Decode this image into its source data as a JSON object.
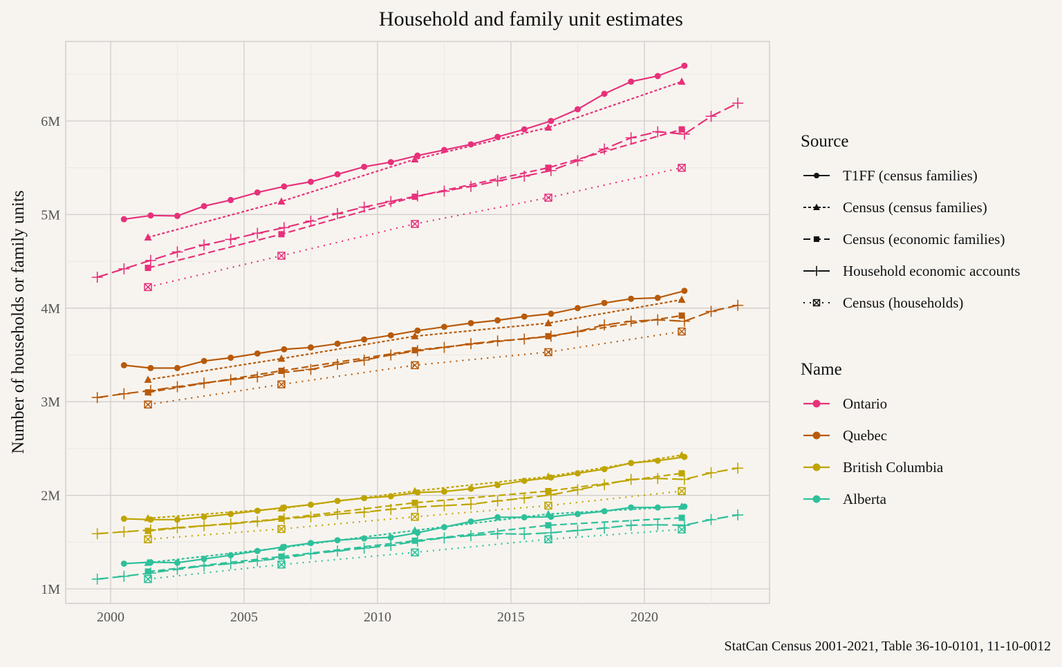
{
  "chart_data": {
    "type": "line",
    "title": "Household and family unit estimates",
    "xlabel": "",
    "ylabel": "Number of households or family units",
    "caption": "StatCan Census 2001-2021, Table 36-10-0101, 11-10-0012",
    "xlim": [
      1998.3,
      2024.3
    ],
    "ylim": [
      0.85,
      6.85
    ],
    "x_ticks": [
      2000,
      2005,
      2010,
      2015,
      2020
    ],
    "x_tick_labels": [
      "2000",
      "2005",
      "2010",
      "2015",
      "2020"
    ],
    "y_ticks": [
      1,
      2,
      3,
      4,
      5,
      6
    ],
    "y_tick_labels": [
      "1M",
      "2M",
      "3M",
      "4M",
      "5M",
      "6M"
    ],
    "y_unit": "millions",
    "grid": true,
    "legend_position": "right",
    "source_legend_title": "Source",
    "name_legend_title": "Name",
    "sources": [
      {
        "name": "T1FF (census families)",
        "line": "solid",
        "marker": "circle"
      },
      {
        "name": "Census (census families)",
        "line": "dotted-dash",
        "marker": "triangle"
      },
      {
        "name": "Census (economic families)",
        "line": "dashed",
        "marker": "square"
      },
      {
        "name": "Household economic accounts",
        "line": "long-dash",
        "marker": "plus"
      },
      {
        "name": "Census (households)",
        "line": "dotted",
        "marker": "square-x"
      }
    ],
    "names": [
      {
        "name": "Ontario",
        "color": "#E7317A"
      },
      {
        "name": "Quebec",
        "color": "#B85A0A"
      },
      {
        "name": "British Columbia",
        "color": "#BFA400"
      },
      {
        "name": "Alberta",
        "color": "#2EC09A"
      }
    ],
    "x_by_source": {
      "T1FF (census families)": [
        2000.5,
        2001.5,
        2002.5,
        2003.5,
        2004.5,
        2005.5,
        2006.5,
        2007.5,
        2008.5,
        2009.5,
        2010.5,
        2011.5,
        2012.5,
        2013.5,
        2014.5,
        2015.5,
        2016.5,
        2017.5,
        2018.5,
        2019.5,
        2020.5,
        2021.5
      ],
      "Census (census families)": [
        2001.4,
        2006.4,
        2011.4,
        2016.4,
        2021.4
      ],
      "Census (economic families)": [
        2001.4,
        2006.4,
        2011.4,
        2016.4,
        2021.4
      ],
      "Household economic accounts": [
        1999.5,
        2000.5,
        2001.5,
        2002.5,
        2003.5,
        2004.5,
        2005.5,
        2006.5,
        2007.5,
        2008.5,
        2009.5,
        2010.5,
        2011.5,
        2012.5,
        2013.5,
        2014.5,
        2015.5,
        2016.5,
        2017.5,
        2018.5,
        2019.5,
        2020.5,
        2021.5,
        2022.5,
        2023.5
      ],
      "Census (households)": [
        2001.4,
        2006.4,
        2011.4,
        2016.4,
        2021.4
      ]
    },
    "series": [
      {
        "name": "Ontario",
        "source": "T1FF (census families)",
        "values": [
          4.95,
          4.99,
          4.985,
          5.09,
          5.155,
          5.236,
          5.3,
          5.35,
          5.43,
          5.51,
          5.56,
          5.63,
          5.69,
          5.75,
          5.83,
          5.91,
          6.0,
          6.125,
          6.29,
          6.42,
          6.48,
          6.59
        ]
      },
      {
        "name": "Ontario",
        "source": "Census (census families)",
        "values": [
          4.756,
          5.14,
          5.59,
          5.93,
          6.42
        ]
      },
      {
        "name": "Ontario",
        "source": "Census (economic families)",
        "values": [
          4.43,
          4.79,
          5.19,
          5.5,
          5.91
        ]
      },
      {
        "name": "Ontario",
        "source": "Household economic accounts",
        "values": [
          4.33,
          4.42,
          4.51,
          4.6,
          4.675,
          4.735,
          4.8,
          4.86,
          4.93,
          5.01,
          5.08,
          5.14,
          5.2,
          5.25,
          5.3,
          5.36,
          5.41,
          5.47,
          5.575,
          5.7,
          5.82,
          5.885,
          5.86,
          6.05,
          6.19
        ]
      },
      {
        "name": "Ontario",
        "source": "Census (households)",
        "values": [
          4.225,
          4.56,
          4.9,
          5.18,
          5.5
        ]
      },
      {
        "name": "Quebec",
        "source": "T1FF (census families)",
        "values": [
          3.39,
          3.36,
          3.36,
          3.435,
          3.47,
          3.515,
          3.56,
          3.58,
          3.62,
          3.665,
          3.71,
          3.76,
          3.8,
          3.84,
          3.87,
          3.91,
          3.94,
          4.0,
          4.055,
          4.1,
          4.11,
          4.185
        ]
      },
      {
        "name": "Quebec",
        "source": "Census (census families)",
        "values": [
          3.235,
          3.46,
          3.7,
          3.84,
          4.09
        ]
      },
      {
        "name": "Quebec",
        "source": "Census (economic families)",
        "values": [
          3.1,
          3.33,
          3.55,
          3.7,
          3.92
        ]
      },
      {
        "name": "Quebec",
        "source": "Household economic accounts",
        "values": [
          3.045,
          3.085,
          3.12,
          3.16,
          3.2,
          3.235,
          3.265,
          3.315,
          3.345,
          3.4,
          3.445,
          3.5,
          3.545,
          3.58,
          3.62,
          3.65,
          3.67,
          3.7,
          3.75,
          3.82,
          3.86,
          3.875,
          3.86,
          3.965,
          4.03
        ]
      },
      {
        "name": "Quebec",
        "source": "Census (households)",
        "values": [
          2.97,
          3.185,
          3.39,
          3.53,
          3.75
        ]
      },
      {
        "name": "British Columbia",
        "source": "T1FF (census families)",
        "values": [
          1.75,
          1.74,
          1.74,
          1.77,
          1.8,
          1.835,
          1.87,
          1.9,
          1.94,
          1.97,
          1.99,
          2.03,
          2.04,
          2.07,
          2.11,
          2.155,
          2.19,
          2.235,
          2.28,
          2.345,
          2.37,
          2.41
        ]
      },
      {
        "name": "British Columbia",
        "source": "Census (census families)",
        "values": [
          1.755,
          1.86,
          2.045,
          2.2,
          2.43
        ]
      },
      {
        "name": "British Columbia",
        "source": "Census (economic families)",
        "values": [
          1.62,
          1.75,
          1.92,
          2.045,
          2.235
        ]
      },
      {
        "name": "British Columbia",
        "source": "Household economic accounts",
        "values": [
          1.59,
          1.61,
          1.63,
          1.655,
          1.675,
          1.695,
          1.72,
          1.75,
          1.77,
          1.8,
          1.82,
          1.85,
          1.875,
          1.89,
          1.905,
          1.94,
          1.97,
          2.005,
          2.06,
          2.115,
          2.17,
          2.18,
          2.17,
          2.24,
          2.29
        ]
      },
      {
        "name": "British Columbia",
        "source": "Census (households)",
        "values": [
          1.53,
          1.64,
          1.77,
          1.89,
          2.045
        ]
      },
      {
        "name": "Alberta",
        "source": "T1FF (census families)",
        "values": [
          1.27,
          1.285,
          1.28,
          1.32,
          1.36,
          1.405,
          1.45,
          1.49,
          1.52,
          1.54,
          1.55,
          1.6,
          1.66,
          1.72,
          1.765,
          1.765,
          1.77,
          1.8,
          1.83,
          1.87,
          1.87,
          1.88
        ]
      },
      {
        "name": "Alberta",
        "source": "Census (census families)",
        "values": [
          1.28,
          1.44,
          1.625,
          1.8,
          1.88
        ]
      },
      {
        "name": "Alberta",
        "source": "Census (economic families)",
        "values": [
          1.185,
          1.345,
          1.515,
          1.68,
          1.76
        ]
      },
      {
        "name": "Alberta",
        "source": "Household economic accounts",
        "values": [
          1.105,
          1.135,
          1.17,
          1.21,
          1.245,
          1.27,
          1.3,
          1.33,
          1.375,
          1.405,
          1.435,
          1.465,
          1.51,
          1.545,
          1.57,
          1.59,
          1.585,
          1.6,
          1.625,
          1.65,
          1.68,
          1.685,
          1.68,
          1.74,
          1.79
        ]
      },
      {
        "name": "Alberta",
        "source": "Census (households)",
        "values": [
          1.105,
          1.26,
          1.39,
          1.53,
          1.635
        ]
      }
    ]
  }
}
